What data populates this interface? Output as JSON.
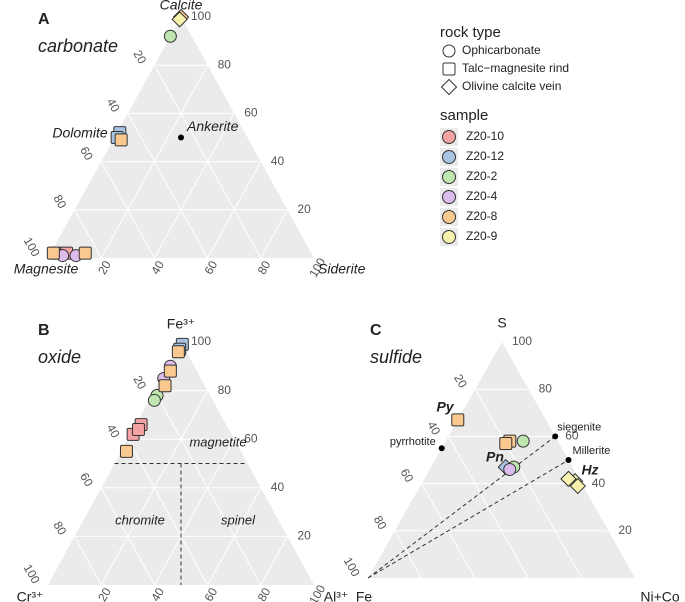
{
  "legend": {
    "shape_title": "rock type",
    "shapes": [
      "Ophicarbonate",
      "Talc−magnesite rind",
      "Olivine calcite vein"
    ],
    "color_title": "sample"
  },
  "chart_data": [
    {
      "type": "ternary",
      "title": "A",
      "subtitle": "carbonate",
      "grid": true,
      "corners": [
        "Calcite",
        "Magnesite",
        "Siderite"
      ],
      "ticks": {
        "top": [
          20,
          40,
          60,
          80,
          100
        ],
        "left": [
          20,
          40,
          60,
          80,
          100
        ],
        "right": [
          20,
          40,
          60,
          80,
          100
        ]
      },
      "series": [
        {
          "name": "Z20-10",
          "color": "#f4a3a3",
          "values": [
            [
              2,
              96,
              2
            ],
            [
              2,
              92,
              6
            ],
            [
              50,
              48,
              2
            ]
          ],
          "shapes": [
            1,
            1,
            1
          ]
        },
        {
          "name": "Z20-12",
          "color": "#a9c3e3",
          "values": [
            [
              52,
              47,
              1
            ],
            [
              50,
              49,
              1
            ]
          ],
          "shapes": [
            1,
            1
          ]
        },
        {
          "name": "Z20-2",
          "color": "#bfe6b0",
          "values": [
            [
              92,
              8,
              0
            ]
          ],
          "shapes": [
            0
          ]
        },
        {
          "name": "Z20-4",
          "color": "#dcbcec",
          "values": [
            [
              1,
              94,
              5
            ],
            [
              1,
              89,
              10
            ]
          ],
          "shapes": [
            0,
            0
          ]
        },
        {
          "name": "Z20-8",
          "color": "#f9c98f",
          "values": [
            [
              100,
              0,
              0
            ],
            [
              49,
              48,
              3
            ],
            [
              2,
              97,
              1
            ],
            [
              2,
              85,
              13
            ]
          ],
          "shapes": [
            2,
            1,
            1,
            1
          ]
        },
        {
          "name": "Z20-9",
          "color": "#f6f2ae",
          "values": [
            [
              99,
              1,
              0
            ]
          ],
          "shapes": [
            2
          ]
        }
      ],
      "annotations": [
        {
          "label": "Dolomite"
        },
        {
          "label": "Ankerite",
          "values": [
            50,
            25,
            25
          ]
        }
      ]
    },
    {
      "type": "ternary",
      "title": "B",
      "subtitle": "oxide",
      "grid": true,
      "corners": [
        "Fe³⁺",
        "Cr³⁺",
        "Al³⁺"
      ],
      "ticks": {
        "top": [
          20,
          40,
          60,
          80,
          100
        ],
        "left": [
          20,
          40,
          60,
          80,
          100
        ],
        "right": [
          20,
          40,
          60,
          80,
          100
        ]
      },
      "series": [
        {
          "name": "Z20-10",
          "color": "#f4a3a3",
          "values": [
            [
              66,
              32,
              2
            ],
            [
              62,
              37,
              1
            ],
            [
              64,
              34,
              2
            ]
          ],
          "shapes": [
            1,
            1,
            1
          ]
        },
        {
          "name": "Z20-12",
          "color": "#a9c3e3",
          "values": [
            [
              99,
              0,
              1
            ],
            [
              97,
              2,
              1
            ]
          ],
          "shapes": [
            1,
            1
          ]
        },
        {
          "name": "Z20-2",
          "color": "#bfe6b0",
          "values": [
            [
              78,
              20,
              2
            ],
            [
              76,
              22,
              2
            ]
          ],
          "shapes": [
            0,
            0
          ]
        },
        {
          "name": "Z20-4",
          "color": "#dcbcec",
          "values": [
            [
              85,
              14,
              1
            ],
            [
              90,
              9,
              1
            ]
          ],
          "shapes": [
            0,
            0
          ]
        },
        {
          "name": "Z20-8",
          "color": "#f9c98f",
          "values": [
            [
              96,
              3,
              1
            ],
            [
              88,
              10,
              2
            ],
            [
              55,
              43,
              2
            ],
            [
              82,
              15,
              3
            ]
          ],
          "shapes": [
            1,
            1,
            1,
            1
          ]
        },
        {
          "name": "Z20-9",
          "color": "#f6f2ae",
          "values": [],
          "shapes": []
        }
      ],
      "annotations": [
        {
          "label": "magnetite"
        },
        {
          "label": "chromite"
        },
        {
          "label": "spinel"
        }
      ],
      "lines": [
        [
          [
            50,
            50,
            0
          ],
          [
            50,
            0,
            50
          ]
        ],
        [
          [
            50,
            25,
            25
          ],
          [
            0,
            50,
            50
          ]
        ]
      ]
    },
    {
      "type": "ternary",
      "title": "C",
      "subtitle": "sulfide",
      "grid": true,
      "corners": [
        "S",
        "Fe",
        "Ni+Co"
      ],
      "ticks": {
        "top": [
          20,
          40,
          60,
          80,
          100
        ],
        "left": [
          20,
          40,
          60,
          80,
          100
        ],
        "right": []
      },
      "series": [
        {
          "name": "Z20-10",
          "color": "#f4a3a3",
          "values": [],
          "shapes": []
        },
        {
          "name": "Z20-12",
          "color": "#a9c3e3",
          "values": [
            [
              47,
              25,
              28
            ]
          ],
          "shapes": [
            2
          ]
        },
        {
          "name": "Z20-2",
          "color": "#bfe6b0",
          "values": [
            [
              58,
              13,
              29
            ],
            [
              47,
              22,
              31
            ]
          ],
          "shapes": [
            0,
            0
          ]
        },
        {
          "name": "Z20-4",
          "color": "#dcbcec",
          "values": [
            [
              46,
              24,
              30
            ]
          ],
          "shapes": [
            0
          ]
        },
        {
          "name": "Z20-8",
          "color": "#f9c98f",
          "values": [
            [
              67,
              33,
              0
            ],
            [
              58,
              18,
              24
            ],
            [
              57,
              20,
              23
            ]
          ],
          "shapes": [
            1,
            1,
            1
          ]
        },
        {
          "name": "Z20-9",
          "color": "#f6f2ae",
          "values": [
            [
              41,
              2,
              57
            ],
            [
              39,
              2,
              59
            ],
            [
              42,
              4,
              54
            ]
          ],
          "shapes": [
            2,
            2,
            2
          ]
        }
      ],
      "annotations": [
        {
          "label": "Py"
        },
        {
          "label": "Pn"
        },
        {
          "label": "Hz"
        },
        {
          "label": "pyrrhotite",
          "values": [
            55,
            45,
            0
          ]
        },
        {
          "label": "siegenite",
          "values": [
            60,
            0,
            40
          ]
        },
        {
          "label": "Millerite",
          "values": [
            50,
            0,
            50
          ]
        }
      ],
      "lines": [
        [
          [
            0,
            100,
            0
          ],
          [
            60,
            0,
            40
          ]
        ],
        [
          [
            0,
            100,
            0
          ],
          [
            50,
            0,
            50
          ]
        ]
      ]
    }
  ]
}
